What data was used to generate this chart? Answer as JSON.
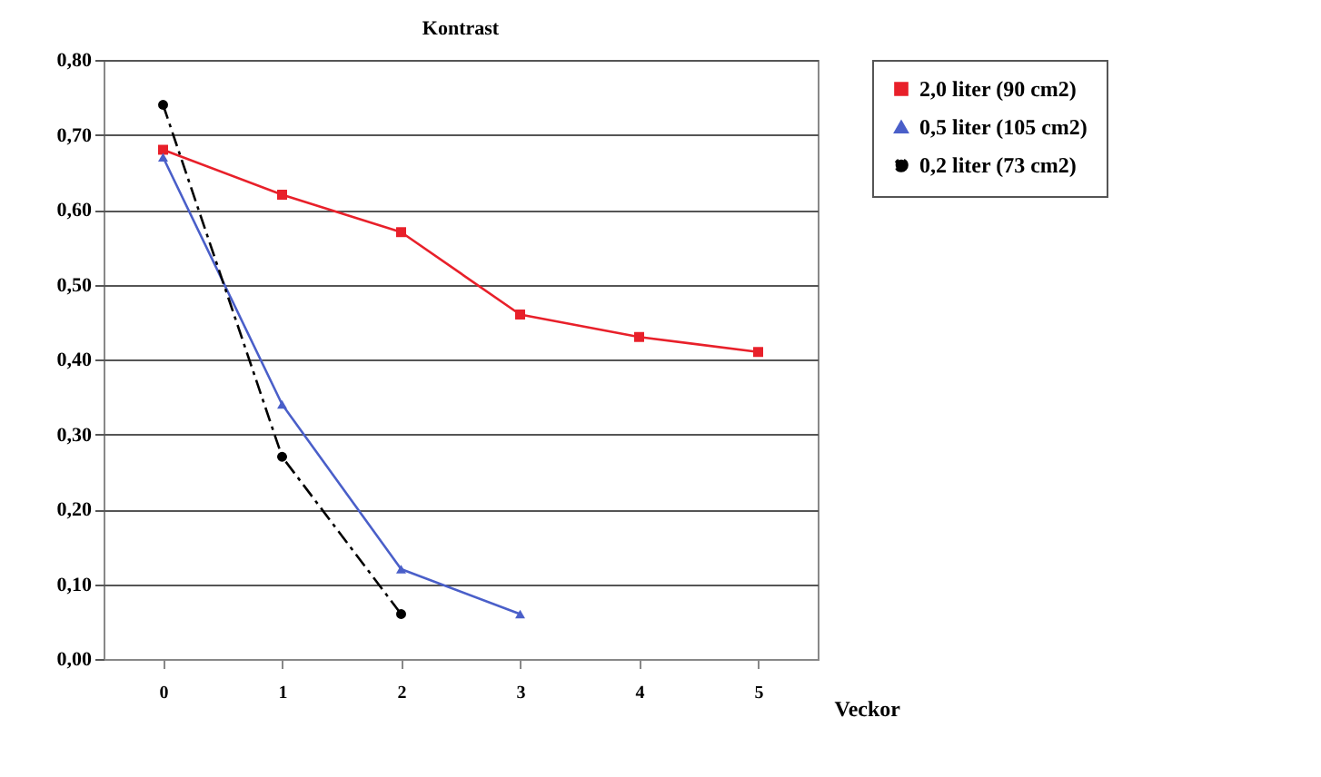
{
  "chart_data": {
    "type": "line",
    "title": "Kontrast",
    "xlabel": "Veckor",
    "categories": [
      "0",
      "1",
      "2",
      "3",
      "4",
      "5"
    ],
    "series": [
      {
        "name": "2,0 liter (90 cm2)",
        "color": "#e8202a",
        "marker": "square",
        "line_style": "solid",
        "values": [
          0.68,
          0.62,
          0.57,
          0.46,
          0.43,
          0.41
        ]
      },
      {
        "name": "0,5 liter (105 cm2)",
        "color": "#4a5fc9",
        "marker": "triangle",
        "line_style": "solid",
        "values": [
          0.67,
          0.34,
          0.12,
          0.06,
          null,
          null
        ]
      },
      {
        "name": "0,2 liter (73 cm2)",
        "color": "#000000",
        "marker": "circle",
        "line_style": "dashed",
        "values": [
          0.74,
          0.27,
          0.06,
          null,
          null,
          null
        ]
      }
    ],
    "ylim": [
      0,
      0.8
    ],
    "yticks": [
      {
        "value": 0,
        "label": "0,00"
      },
      {
        "value": 0.1,
        "label": "0,10"
      },
      {
        "value": 0.2,
        "label": "0,20"
      },
      {
        "value": 0.3,
        "label": "0,30"
      },
      {
        "value": 0.4,
        "label": "0,40"
      },
      {
        "value": 0.5,
        "label": "0,50"
      },
      {
        "value": 0.6,
        "label": "0,60"
      },
      {
        "value": 0.7,
        "label": "0,70"
      },
      {
        "value": 0.8,
        "label": "0,80"
      }
    ],
    "grid": "y",
    "legend": "right"
  }
}
